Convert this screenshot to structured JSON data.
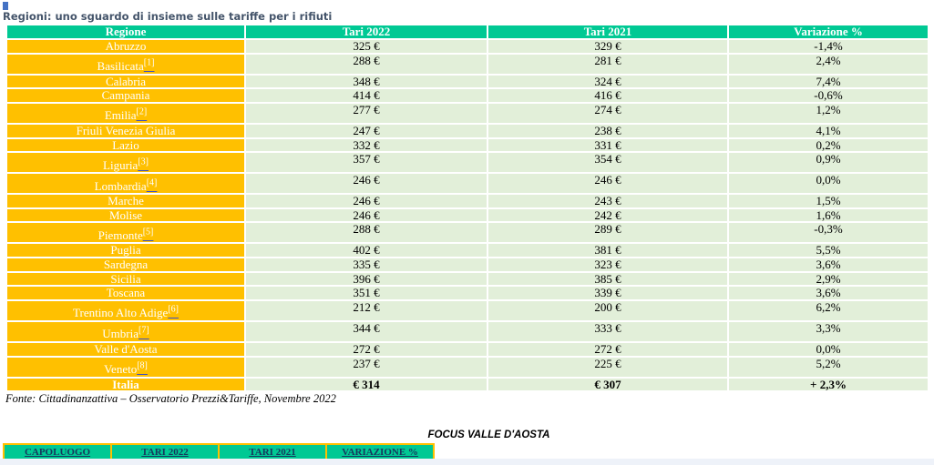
{
  "page": {
    "title": "Regioni: uno sguardo di insieme sulle tariffe per i rifiuti",
    "source_note": "Fonte: Cittadinanzattiva – Osservatorio Prezzi&Tariffe, Novembre 2022",
    "focus_heading": "FOCUS VALLE D'AOSTA"
  },
  "colors": {
    "header_green": "#00C994",
    "region_orange": "#FFC000",
    "cell_light_green": "#E2EFD9",
    "title_color": "#44546A",
    "caret_blue": "#4472C4",
    "footnote_underline": "#3D4FC4",
    "focus_header_text": "#17375D"
  },
  "regions_table": {
    "columns": [
      "Regione",
      "Tari 2022",
      "Tari 2021",
      "Variazione %"
    ],
    "rows": [
      {
        "region": "Abruzzo",
        "footnote": "",
        "tari_2022": "325 €",
        "tari_2021": "329 €",
        "variazione": "-1,4%"
      },
      {
        "region": "Basilicata",
        "footnote": "[1]",
        "tari_2022": "288 €",
        "tari_2021": "281 €",
        "variazione": "2,4%"
      },
      {
        "region": "Calabria",
        "footnote": "",
        "tari_2022": "348 €",
        "tari_2021": "324 €",
        "variazione": "7,4%"
      },
      {
        "region": "Campania",
        "footnote": "",
        "tari_2022": "414 €",
        "tari_2021": "416 €",
        "variazione": "-0,6%"
      },
      {
        "region": "Emilia",
        "footnote": "[2]",
        "tari_2022": "277 €",
        "tari_2021": "274 €",
        "variazione": "1,2%"
      },
      {
        "region": "Friuli Venezia Giulia",
        "footnote": "",
        "tari_2022": "247 €",
        "tari_2021": "238 €",
        "variazione": "4,1%"
      },
      {
        "region": "Lazio",
        "footnote": "",
        "tari_2022": "332 €",
        "tari_2021": "331 €",
        "variazione": "0,2%"
      },
      {
        "region": "Liguria",
        "footnote": "[3]",
        "tari_2022": "357 €",
        "tari_2021": "354 €",
        "variazione": "0,9%"
      },
      {
        "region": "Lombardia",
        "footnote": "[4]",
        "tari_2022": "246 €",
        "tari_2021": "246 €",
        "variazione": "0,0%"
      },
      {
        "region": "Marche",
        "footnote": "",
        "tari_2022": "246 €",
        "tari_2021": "243 €",
        "variazione": "1,5%"
      },
      {
        "region": "Molise",
        "footnote": "",
        "tari_2022": "246 €",
        "tari_2021": "242 €",
        "variazione": "1,6%"
      },
      {
        "region": "Piemonte",
        "footnote": "[5]",
        "tari_2022": "288 €",
        "tari_2021": "289 €",
        "variazione": "-0,3%"
      },
      {
        "region": "Puglia",
        "footnote": "",
        "tari_2022": "402 €",
        "tari_2021": "381 €",
        "variazione": "5,5%"
      },
      {
        "region": "Sardegna",
        "footnote": "",
        "tari_2022": "335 €",
        "tari_2021": "323 €",
        "variazione": "3,6%"
      },
      {
        "region": "Sicilia",
        "footnote": "",
        "tari_2022": "396 €",
        "tari_2021": "385 €",
        "variazione": "2,9%"
      },
      {
        "region": "Toscana",
        "footnote": "",
        "tari_2022": "351 €",
        "tari_2021": "339 €",
        "variazione": "3,6%"
      },
      {
        "region": "Trentino Alto Adige",
        "footnote": "[6]",
        "tari_2022": "212 €",
        "tari_2021": "200 €",
        "variazione": "6,2%"
      },
      {
        "region": "Umbria",
        "footnote": "[7]",
        "tari_2022": "344 €",
        "tari_2021": "333 €",
        "variazione": "3,3%"
      },
      {
        "region": "Valle d'Aosta",
        "footnote": "",
        "tari_2022": "272 €",
        "tari_2021": "272 €",
        "variazione": "0,0%"
      },
      {
        "region": "Veneto",
        "footnote": "[8]",
        "tari_2022": "237 €",
        "tari_2021": "225 €",
        "variazione": "5,2%"
      }
    ],
    "total_row": {
      "region": "Italia",
      "tari_2022": "€ 314",
      "tari_2021": "€ 307",
      "variazione": "+ 2,3%"
    }
  },
  "focus_table": {
    "columns": [
      "CAPOLUOGO",
      "TARI 2022",
      "TARI 2021",
      "VARIAZIONE %"
    ]
  }
}
